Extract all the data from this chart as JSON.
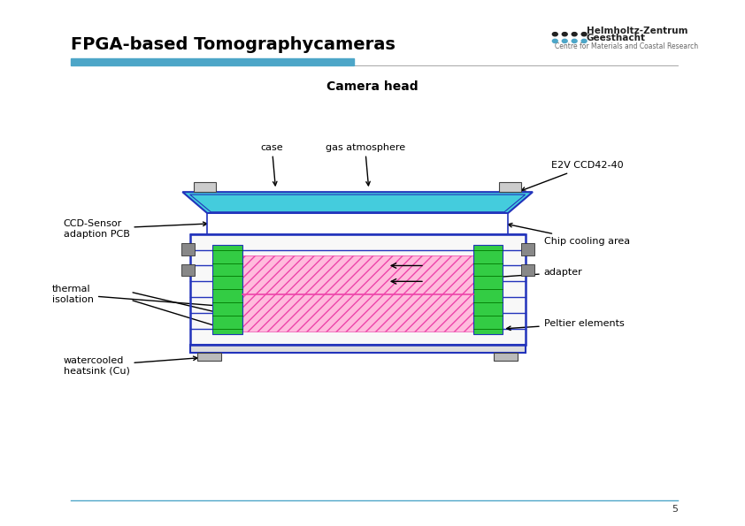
{
  "title": "FPGA-based Tomographycameras",
  "subtitle": "Camera head",
  "bg_color": "#ffffff",
  "title_color": "#000000",
  "title_fontsize": 14,
  "subtitle_fontsize": 10,
  "page_number": "5",
  "header_line_color": "#4da6c8",
  "header_bar_color": "#4da6c8",
  "logo_dot_color1": "#222222",
  "logo_dot_color2": "#4da6c8",
  "logo_text1": "Helmholtz-Zentrum",
  "logo_text2": "Geesthacht",
  "logo_text3": "Centre for Materials and Coastal Research",
  "diag": {
    "blue": "#2233bb",
    "cyan": "#44ccdd",
    "green": "#33cc44",
    "pink": "#ee44aa",
    "gray_light": "#f0f0f0",
    "gray_mid": "#cccccc",
    "dark_green": "#007700"
  }
}
